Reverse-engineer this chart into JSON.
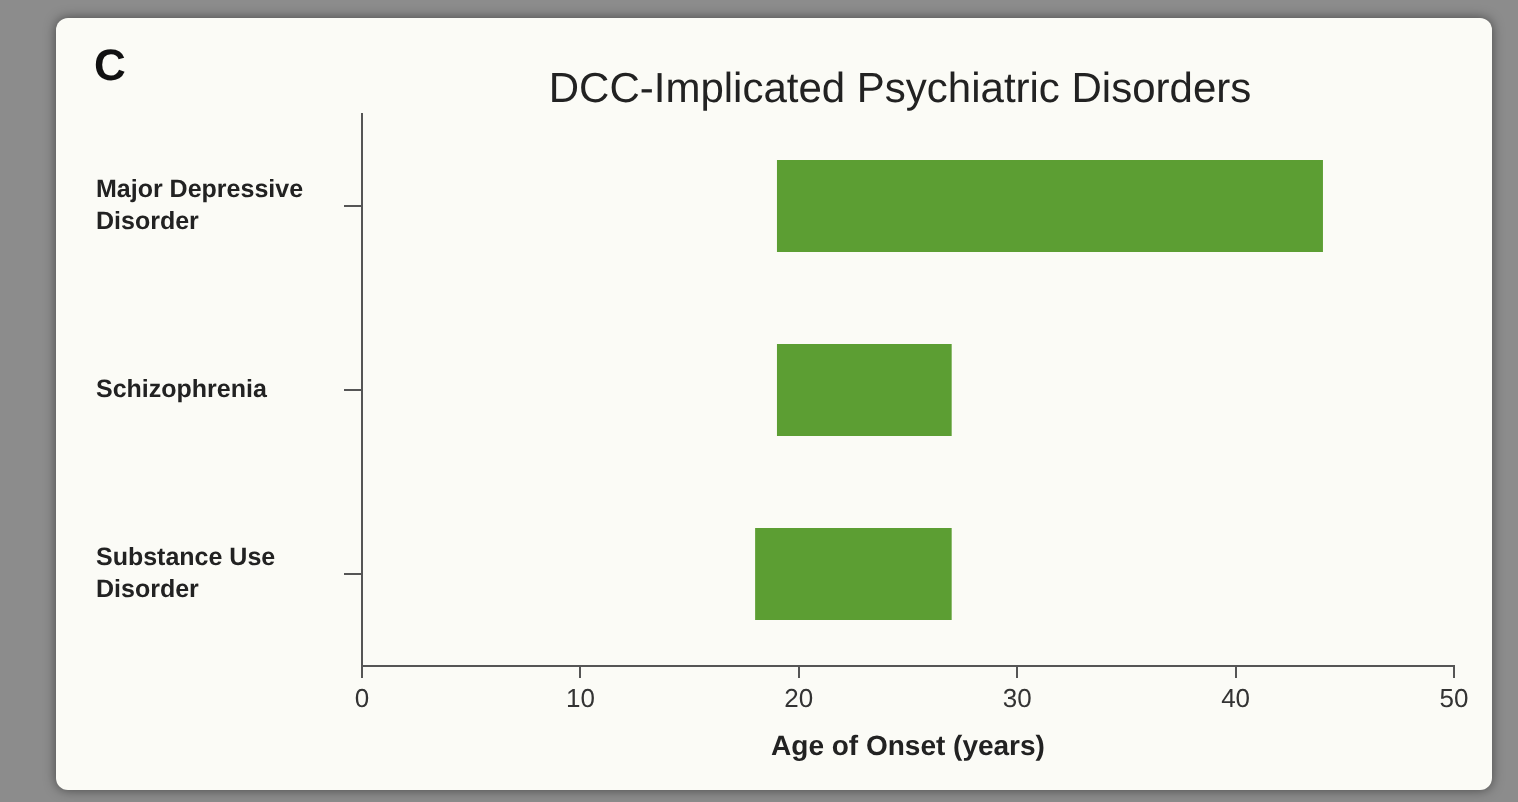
{
  "chart_data": {
    "type": "bar",
    "orientation": "horizontal",
    "title": "DCC-Implicated Psychiatric Disorders",
    "xlabel": "Age of Onset (years)",
    "annotations": [
      "C"
    ],
    "categories": [
      "Major Depressive Disorder",
      "Schizophrenia",
      "Substance Use Disorder"
    ],
    "base": [
      19,
      19,
      18
    ],
    "values": [
      25,
      8,
      9
    ],
    "color": "#5c9e33",
    "xlim": [
      0,
      50
    ],
    "xticks": [
      0,
      10,
      20,
      30,
      40,
      50
    ],
    "grid": false,
    "legend": false
  }
}
